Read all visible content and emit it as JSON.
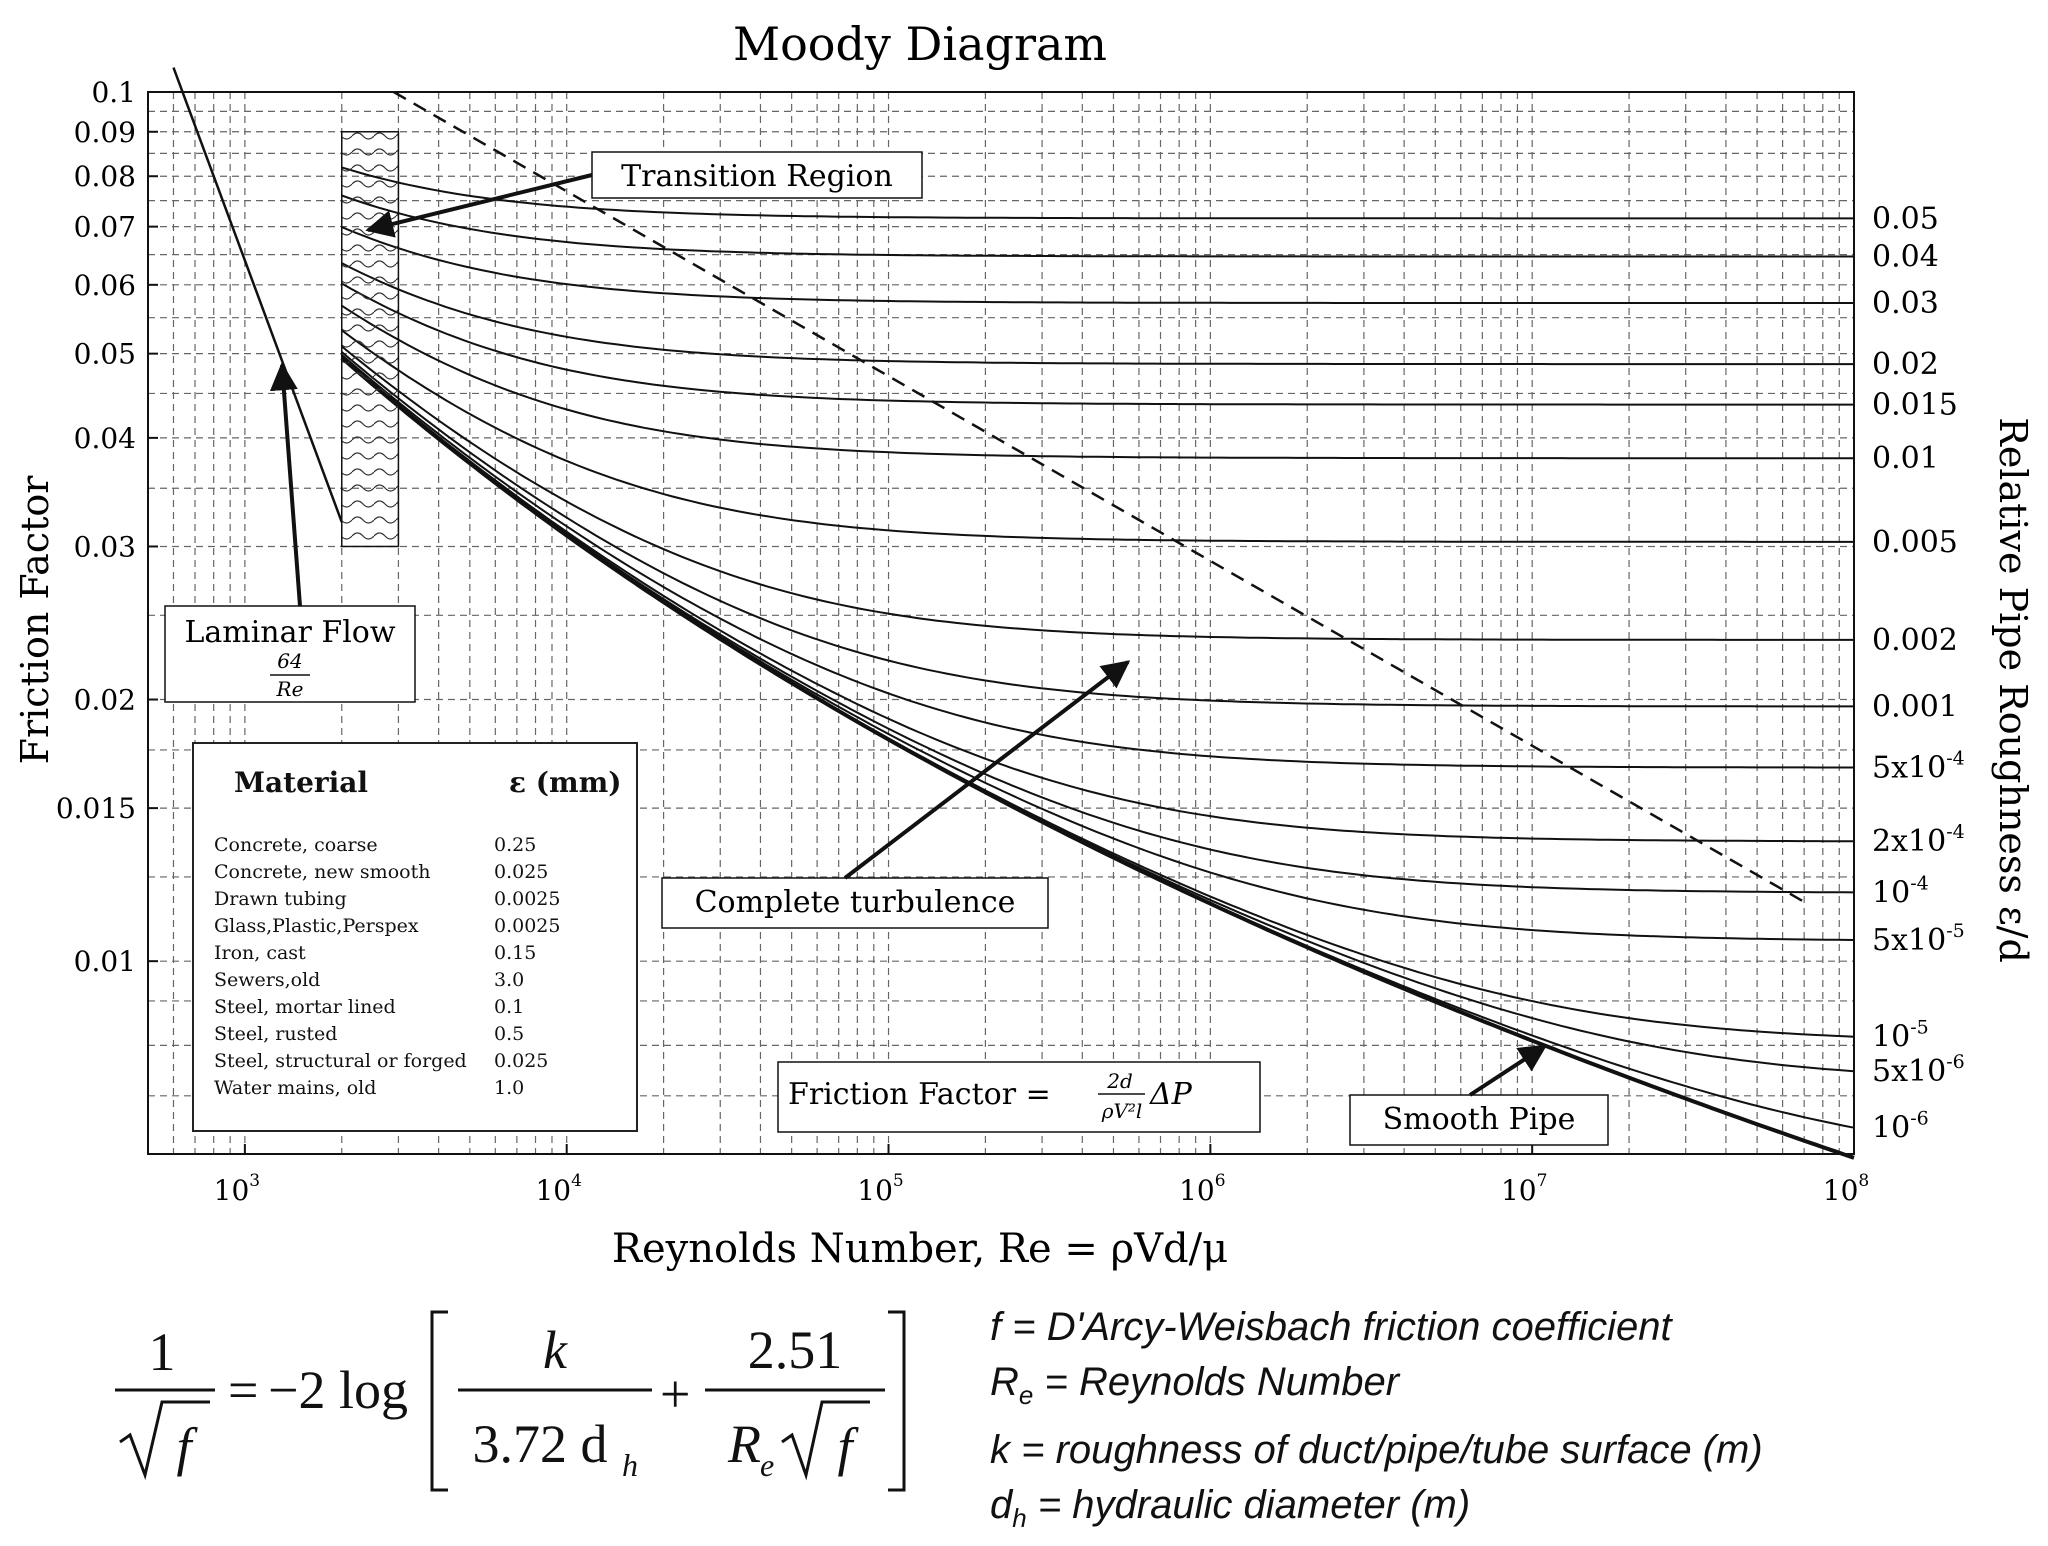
{
  "chart_data": {
    "type": "line",
    "title": "Moody Diagram",
    "xlabel": "Reynolds Number, Re = ρVd/μ",
    "ylabel": "Friction Factor",
    "y2label": "Relative Pipe Roughness ε/d",
    "xscale": "log",
    "yscale": "log",
    "xlim": [
      500,
      100000000
    ],
    "ylim": [
      0.006,
      0.1
    ],
    "grid": true,
    "x_tick_labels": [
      "10^3",
      "10^4",
      "10^5",
      "10^6",
      "10^7",
      "10^8"
    ],
    "x_ticks": [
      1000,
      10000,
      100000,
      1000000,
      10000000,
      100000000
    ],
    "y_ticks": [
      0.01,
      0.015,
      0.02,
      0.03,
      0.04,
      0.05,
      0.06,
      0.07,
      0.08,
      0.09,
      0.1
    ],
    "y_tick_labels": [
      "0.01",
      "0.015",
      "0.02",
      "0.03",
      "0.04",
      "0.05",
      "0.06",
      "0.07",
      "0.08",
      "0.09",
      "0.1"
    ],
    "laminar": {
      "x": [
        600,
        2000
      ],
      "y": [
        0.1067,
        0.032
      ]
    },
    "transition_region": {
      "x": [
        2000,
        3000
      ],
      "y": [
        0.03,
        0.09
      ]
    },
    "complete_turbulence_line": {
      "x": [
        2900,
        70000000
      ],
      "y": [
        0.1,
        0.0117
      ]
    },
    "roughness_series": [
      {
        "label": "0.05",
        "eps": 0.05
      },
      {
        "label": "0.04",
        "eps": 0.04
      },
      {
        "label": "0.03",
        "eps": 0.03
      },
      {
        "label": "0.02",
        "eps": 0.02
      },
      {
        "label": "0.015",
        "eps": 0.015
      },
      {
        "label": "0.01",
        "eps": 0.01
      },
      {
        "label": "0.005",
        "eps": 0.005
      },
      {
        "label": "0.002",
        "eps": 0.002
      },
      {
        "label": "0.001",
        "eps": 0.001
      },
      {
        "label": "5x10^-4",
        "eps": 0.0005
      },
      {
        "label": "2x10^-4",
        "eps": 0.0002
      },
      {
        "label": "10^-4",
        "eps": 0.0001
      },
      {
        "label": "5x10^-5",
        "eps": 5e-05
      },
      {
        "label": "10^-5",
        "eps": 1e-05
      },
      {
        "label": "5x10^-6",
        "eps": 5e-06
      },
      {
        "label": "10^-6",
        "eps": 1e-06
      }
    ],
    "annotations": {
      "transition": "Transition Region",
      "laminar": "Laminar Flow",
      "laminar_formula_num": "64",
      "laminar_formula_den": "Re",
      "complete": "Complete turbulence",
      "smooth": "Smooth Pipe",
      "friction_formula": "Friction Factor ="
    }
  },
  "materials": {
    "header_material": "Material",
    "header_eps": "ε (mm)",
    "rows": [
      {
        "name": "Concrete, coarse",
        "eps": "0.25"
      },
      {
        "name": "Concrete, new smooth",
        "eps": "0.025"
      },
      {
        "name": "Drawn tubing",
        "eps": "0.0025"
      },
      {
        "name": "Glass,Plastic,Perspex",
        "eps": "0.0025"
      },
      {
        "name": "Iron, cast",
        "eps": "0.15"
      },
      {
        "name": "Sewers,old",
        "eps": "3.0"
      },
      {
        "name": "Steel, mortar lined",
        "eps": "0.1"
      },
      {
        "name": "Steel, rusted",
        "eps": "0.5"
      },
      {
        "name": "Steel, structural or forged",
        "eps": "0.025"
      },
      {
        "name": "Water mains, old",
        "eps": "1.0"
      }
    ]
  },
  "equation": {
    "lhs_num": "1",
    "sqrt_f": "f",
    "equals": "=",
    "coef": "−2 log",
    "frac1_num": "k",
    "frac1_den": "3.72 d",
    "frac1_sub": "h",
    "plus": "+",
    "frac2_num": "2.51",
    "frac2_den": "R",
    "frac2_sub": "e"
  },
  "definitions": [
    {
      "sym": "f",
      "sub": "",
      "text": " = D'Arcy-Weisbach  friction coefficient"
    },
    {
      "sym": "R",
      "sub": "e",
      "text": " = Reynolds Number"
    },
    {
      "sym": "k",
      "sub": "",
      "text": " = roughness of duct/pipe/tube surface (m)"
    },
    {
      "sym": "d",
      "sub": "h",
      "text": " = hydraulic diameter (m)"
    }
  ]
}
